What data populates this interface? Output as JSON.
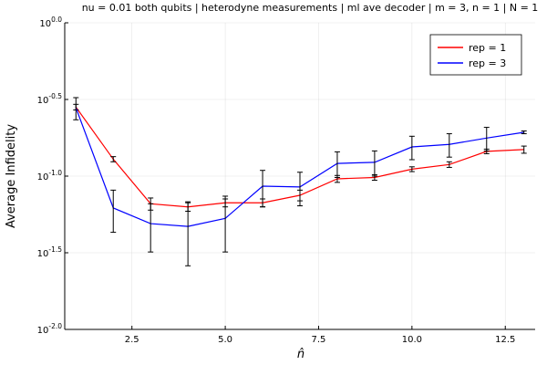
{
  "chart_data": {
    "type": "line",
    "title": "nu = 0.01 both qubits | heterodyne measurements | ml ave decoder | m = 3, n = 1 | N = 1",
    "xlabel": "n̂",
    "ylabel": "Average Infidelity",
    "yscale": "log10",
    "xlim": [
      0.7,
      13.3
    ],
    "ylim": [
      0.01,
      1.0
    ],
    "xticks": [
      2.5,
      5.0,
      7.5,
      10.0,
      12.5
    ],
    "xtick_labels": [
      "2.5",
      "5.0",
      "7.5",
      "10.0",
      "12.5"
    ],
    "yticks": [
      {
        "base": "10",
        "exp": "0.0"
      },
      {
        "base": "10",
        "exp": "-0.5"
      },
      {
        "base": "10",
        "exp": "-1.0"
      },
      {
        "base": "10",
        "exp": "-1.5"
      },
      {
        "base": "10",
        "exp": "-2.0"
      }
    ],
    "grid": true,
    "legend_position": "top-right",
    "x": [
      1,
      2,
      3,
      4,
      5,
      6,
      7,
      8,
      9,
      10,
      11,
      12,
      13
    ],
    "series": [
      {
        "name": "rep = 1",
        "color": "#ff0000",
        "values": [
          0.282,
          0.129,
          0.066,
          0.063,
          0.067,
          0.067,
          0.075,
          0.096,
          0.098,
          0.111,
          0.119,
          0.145,
          0.149
        ],
        "error": [
          0.012,
          0.005,
          0.006,
          0.004,
          0.004,
          0.004,
          0.006,
          0.005,
          0.004,
          0.004,
          0.005,
          0.005,
          0.008
        ]
      },
      {
        "name": "rep = 3",
        "color": "#0000ff",
        "values": [
          0.279,
          0.062,
          0.049,
          0.047,
          0.053,
          0.086,
          0.085,
          0.121,
          0.123,
          0.155,
          0.161,
          0.177,
          0.193
        ],
        "error": [
          0.046,
          0.019,
          0.017,
          0.021,
          0.021,
          0.023,
          0.021,
          0.023,
          0.023,
          0.027,
          0.028,
          0.031,
          0.004
        ]
      }
    ]
  }
}
